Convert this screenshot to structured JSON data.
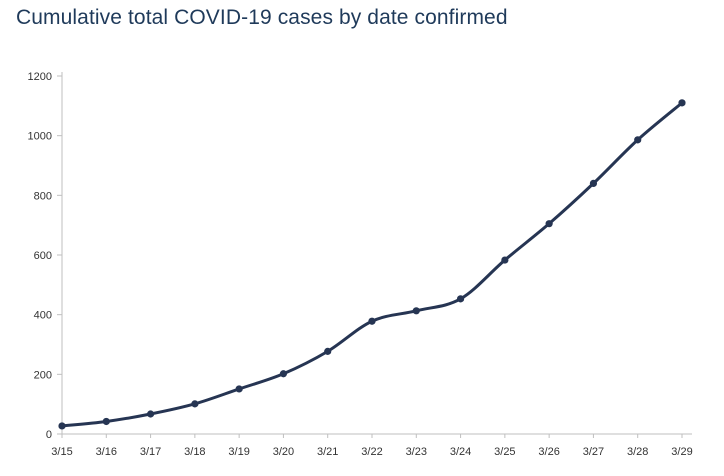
{
  "chart_data": {
    "type": "line",
    "title": "Cumulative total COVID-19 cases by date confirmed",
    "xlabel": "",
    "ylabel": "",
    "categories": [
      "3/15",
      "3/16",
      "3/17",
      "3/18",
      "3/19",
      "3/20",
      "3/21",
      "3/22",
      "3/23",
      "3/24",
      "3/25",
      "3/26",
      "3/27",
      "3/28",
      "3/29"
    ],
    "series": [
      {
        "values": [
          27,
          42,
          67,
          101,
          151,
          202,
          277,
          378,
          413,
          453,
          583,
          705,
          840,
          986,
          1110
        ]
      }
    ],
    "ylim": [
      0,
      1200
    ],
    "yticks": [
      0,
      200,
      400,
      600,
      800,
      1000,
      1200
    ],
    "grid": false,
    "legend": "none",
    "colors": {
      "line": "#263553",
      "axis": "#bfbfbf",
      "title": "#1f3a5a"
    }
  }
}
